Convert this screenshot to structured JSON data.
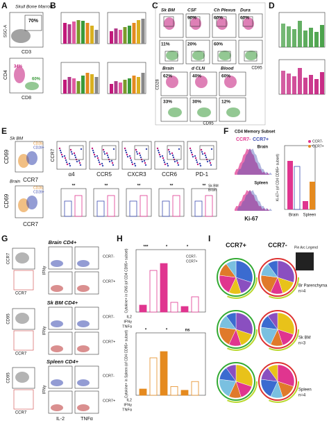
{
  "a": {
    "letter": "A",
    "title": "Skull Bone Marrow",
    "ssc": "SSC-A",
    "cd3": "CD3",
    "pct1": "70%",
    "cd4": "CD4",
    "cd8": "CD8",
    "pct2": "34%",
    "pct3": "60%"
  },
  "b": {
    "letter": "B"
  },
  "c": {
    "letter": "C",
    "tissues_top": [
      "Sk BM",
      "CSF",
      "Ch Plexus",
      "Dura"
    ],
    "tissues_bottom": [
      "Brain",
      "d CLN",
      "Blood"
    ],
    "pct_row1": [
      "90%",
      "60%",
      "60%"
    ],
    "pct_row2": [
      "11%",
      "20%",
      "60%"
    ],
    "pct_row3": [
      "62%",
      "40%",
      "60%"
    ],
    "pct_row4": [
      "33%",
      "30%",
      "12%"
    ],
    "x_label": "CD95",
    "y_label": "CD28",
    "x_label2": "CD95"
  },
  "d": {
    "letter": "D"
  },
  "e": {
    "letter": "E",
    "sk_bm": "Sk BM",
    "brain": "Brain",
    "cd69": "CD69",
    "ccr7": "CCR7",
    "cd28neg": "CD28-",
    "cd28pos": "CD28+",
    "markers": [
      "α4",
      "CCR5",
      "CXCR3",
      "CCR6",
      "PD-1"
    ],
    "significance": [
      "**",
      "**",
      "**",
      "**",
      "**"
    ],
    "legend": [
      "Sk BM",
      "Brain"
    ]
  },
  "f": {
    "letter": "F",
    "title": "CD4 Memory Subset",
    "legend": [
      "CCR7-",
      "CCR7+"
    ],
    "hist_labels": [
      "Brain",
      "Spleen"
    ],
    "x_label": "Ki-67",
    "y_label": "Ki-67+ (of CD4 CD95+ subset)",
    "categories": [
      "Brain",
      "Spleen"
    ]
  },
  "g": {
    "letter": "G",
    "blocks": [
      "Brain CD4+",
      "Sk BM CD4+",
      "Spleen CD4+"
    ],
    "gate_y": [
      "CCR7",
      "CD95",
      "CD95"
    ],
    "gate_x": "CCR7",
    "y_axis": "IFNγ",
    "x_axes": [
      "IL-2",
      "TNFα"
    ],
    "rows": [
      "CCR7-",
      "CCR7+"
    ]
  },
  "h": {
    "letter": "H",
    "y_top": "Cytokine+ in CNS (of CD4 CD95+ subset)",
    "y_bottom": "Cytokine+ in Spleen (of CD4 CD95+ subset)",
    "legend": [
      "CCR7-",
      "CCR7+"
    ],
    "row_labels": [
      "IL2",
      "IFNγ",
      "TNFα"
    ],
    "significance": [
      "***",
      "*",
      "*",
      "*",
      "*",
      "ns"
    ]
  },
  "i": {
    "letter": "I",
    "columns": [
      "CCR7+",
      "CCR7-"
    ],
    "legend_title": "Pie Arc Legend",
    "rows": [
      {
        "tissue": "Br Parenchyma",
        "n": "n=4"
      },
      {
        "tissue": "Sk BM",
        "n": "n=3"
      },
      {
        "tissue": "Spleen",
        "n": "n=4"
      }
    ]
  }
}
